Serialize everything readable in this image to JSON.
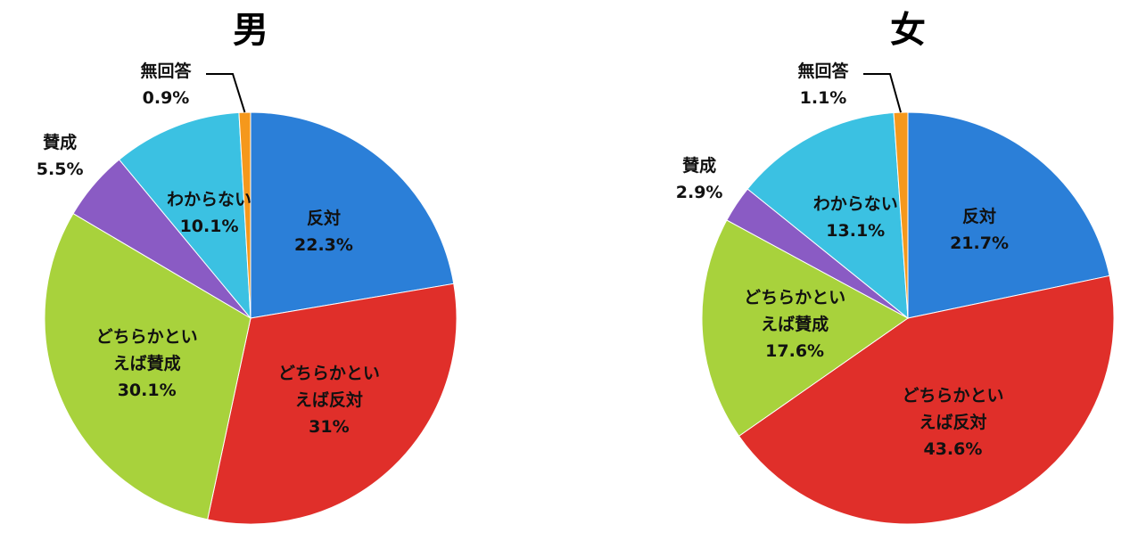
{
  "chart_data": [
    {
      "type": "pie",
      "title": "男",
      "categories": [
        "反対",
        "どちらかといえば反対",
        "どちらかといえば賛成",
        "賛成",
        "わからない",
        "無回答"
      ],
      "values": [
        22.3,
        31,
        30.1,
        5.5,
        10.1,
        0.9
      ],
      "value_labels": [
        "22.3%",
        "31%",
        "30.1%",
        "5.5%",
        "10.1%",
        "0.9%"
      ],
      "colors": [
        "#2b7fd8",
        "#e02f2a",
        "#a8d23c",
        "#8a5bc4",
        "#3bc1e2",
        "#f5981c"
      ]
    },
    {
      "type": "pie",
      "title": "女",
      "categories": [
        "反対",
        "どちらかといえば反対",
        "どちらかといえば賛成",
        "賛成",
        "わからない",
        "無回答"
      ],
      "values": [
        21.7,
        43.6,
        17.6,
        2.9,
        13.1,
        1.1
      ],
      "value_labels": [
        "21.7%",
        "43.6%",
        "17.6%",
        "2.9%",
        "13.1%",
        "1.1%"
      ],
      "colors": [
        "#2b7fd8",
        "#e02f2a",
        "#a8d23c",
        "#8a5bc4",
        "#3bc1e2",
        "#f5981c"
      ]
    }
  ]
}
